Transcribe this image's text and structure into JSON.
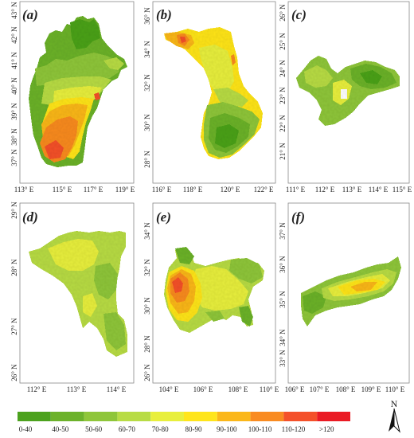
{
  "panels": [
    {
      "label": "(a)",
      "x_ticks": [
        "113° E",
        "115° E",
        "117° E",
        "119° E"
      ],
      "y_ticks": [
        "43° N",
        "42° N",
        "41° N",
        "40° N",
        "39° N",
        "38° N",
        "37° N"
      ]
    },
    {
      "label": "(b)",
      "x_ticks": [
        "116° E",
        "118° E",
        "120° E",
        "122° E"
      ],
      "y_ticks": [
        "36° N",
        "34° N",
        "32° N",
        "30° N",
        "28° N"
      ]
    },
    {
      "label": "(c)",
      "x_ticks": [
        "111° E",
        "112° E",
        "113° E",
        "114° E",
        "115° E"
      ],
      "y_ticks": [
        "26° N",
        "25° N",
        "24° N",
        "23° N",
        "22° N",
        "21° N"
      ]
    },
    {
      "label": "(d)",
      "x_ticks": [
        "112° E",
        "113° E",
        "114° E"
      ],
      "y_ticks": [
        "29° N",
        "28° N",
        "27° N",
        "26° N"
      ]
    },
    {
      "label": "(e)",
      "x_ticks": [
        "104° E",
        "106° E",
        "108° E",
        "110° E"
      ],
      "y_ticks": [
        "34° N",
        "32° N",
        "30° N",
        "28° N",
        "26° N"
      ]
    },
    {
      "label": "(f)",
      "x_ticks": [
        "106° E",
        "107° E",
        "108° E",
        "109° E",
        "110° E"
      ],
      "y_ticks": [
        "37° N",
        "36° N",
        "35° N",
        "34° N",
        "33° N"
      ]
    }
  ],
  "legend": {
    "labels": [
      "0-40",
      "40-50",
      "50-60",
      "60-70",
      "70-80",
      "80-90",
      "90-100",
      "100-110",
      "110-120",
      ">120"
    ],
    "colors": [
      "#4ca21e",
      "#6cb22b",
      "#8fc63a",
      "#b8dc45",
      "#e8ef3c",
      "#ffe51b",
      "#fbb71a",
      "#f98b21",
      "#f4512a",
      "#ea1b24"
    ]
  },
  "north_arrow": {
    "label": "N"
  }
}
